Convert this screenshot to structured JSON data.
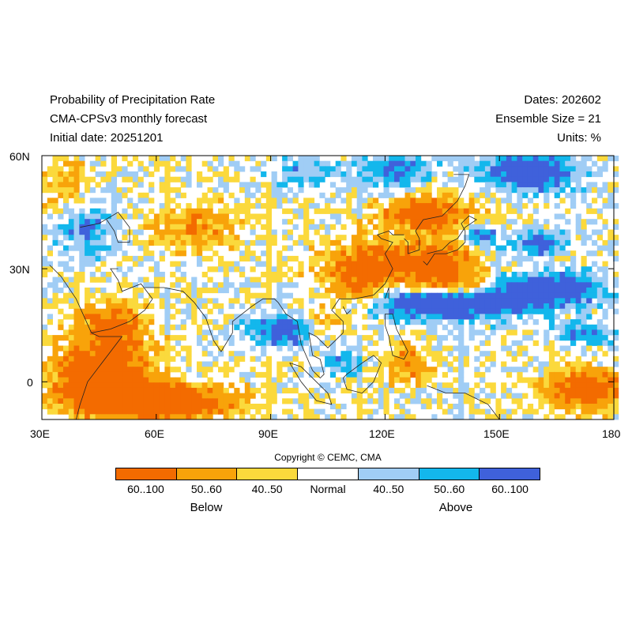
{
  "header": {
    "title": "Probability of Precipitation Rate",
    "model": "CMA-CPSv3 monthly forecast",
    "initial": "Initial date: 20251201",
    "dates": "Dates: 202602",
    "ensemble": "Ensemble Size = 21",
    "units": "Units: %"
  },
  "axes": {
    "x_ticks": [
      "30E",
      "60E",
      "90E",
      "120E",
      "150E",
      "180"
    ],
    "y_ticks": [
      "60N",
      "30N",
      "0"
    ],
    "lon_range": [
      30,
      180
    ],
    "lat_range": [
      -10,
      60
    ]
  },
  "copyright": "Copyright © CEMC, CMA",
  "legend": {
    "items": [
      {
        "label": "60..100",
        "color": "#f36b00"
      },
      {
        "label": "50..60",
        "color": "#f8a30a"
      },
      {
        "label": "40..50",
        "color": "#fbd93c"
      },
      {
        "label": "Normal",
        "color": "#ffffff"
      },
      {
        "label": "40..50",
        "color": "#a0cdf5"
      },
      {
        "label": "50..60",
        "color": "#13b7ec"
      },
      {
        "label": "60..100",
        "color": "#3f61db"
      }
    ],
    "below_label": "Below",
    "above_label": "Above"
  }
}
